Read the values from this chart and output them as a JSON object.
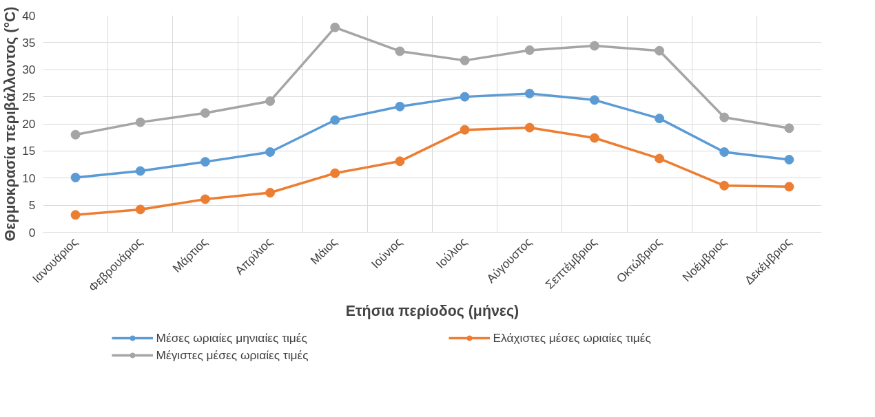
{
  "chart_data": {
    "type": "line",
    "xlabel": "Ετήσια περίοδος (μήνες)",
    "ylabel": "Θερμοκρασία περιβάλλοντος (°C)",
    "categories": [
      "Ιανουάριος",
      "Φεβρουάριος",
      "Μάρτιος",
      "Απρίλιος",
      "Μάιος",
      "Ιούνιος",
      "Ιούλιος",
      "Αύγουστος",
      "Σεπτέμβριος",
      "Οκτώβριος",
      "Νοέμβριος",
      "Δεκέμβριος"
    ],
    "series": [
      {
        "name": "Μέσες ωριαίες μηνιαίες τιμές",
        "color": "#5b9bd5",
        "values": [
          10.1,
          11.3,
          13.0,
          14.8,
          20.7,
          23.2,
          25.0,
          25.6,
          24.4,
          21.0,
          14.8,
          13.4
        ]
      },
      {
        "name": "Ελάχιστες μέσες ωριαίες τιμές",
        "color": "#ed7d31",
        "values": [
          3.2,
          4.2,
          6.1,
          7.3,
          10.9,
          13.1,
          18.9,
          19.3,
          17.4,
          13.6,
          8.6,
          8.4
        ]
      },
      {
        "name": "Μέγιστες μέσες ωριαίες τιμές",
        "color": "#a5a5a5",
        "values": [
          18.0,
          20.3,
          22.0,
          24.2,
          37.8,
          33.4,
          31.7,
          33.6,
          34.4,
          33.5,
          21.2,
          19.2
        ]
      }
    ],
    "ylim": [
      0,
      40
    ],
    "yticks": [
      0,
      5,
      10,
      15,
      20,
      25,
      30,
      35,
      40
    ],
    "grid": true,
    "legend": "bottom",
    "marker": "circle",
    "line_style": "solid"
  }
}
